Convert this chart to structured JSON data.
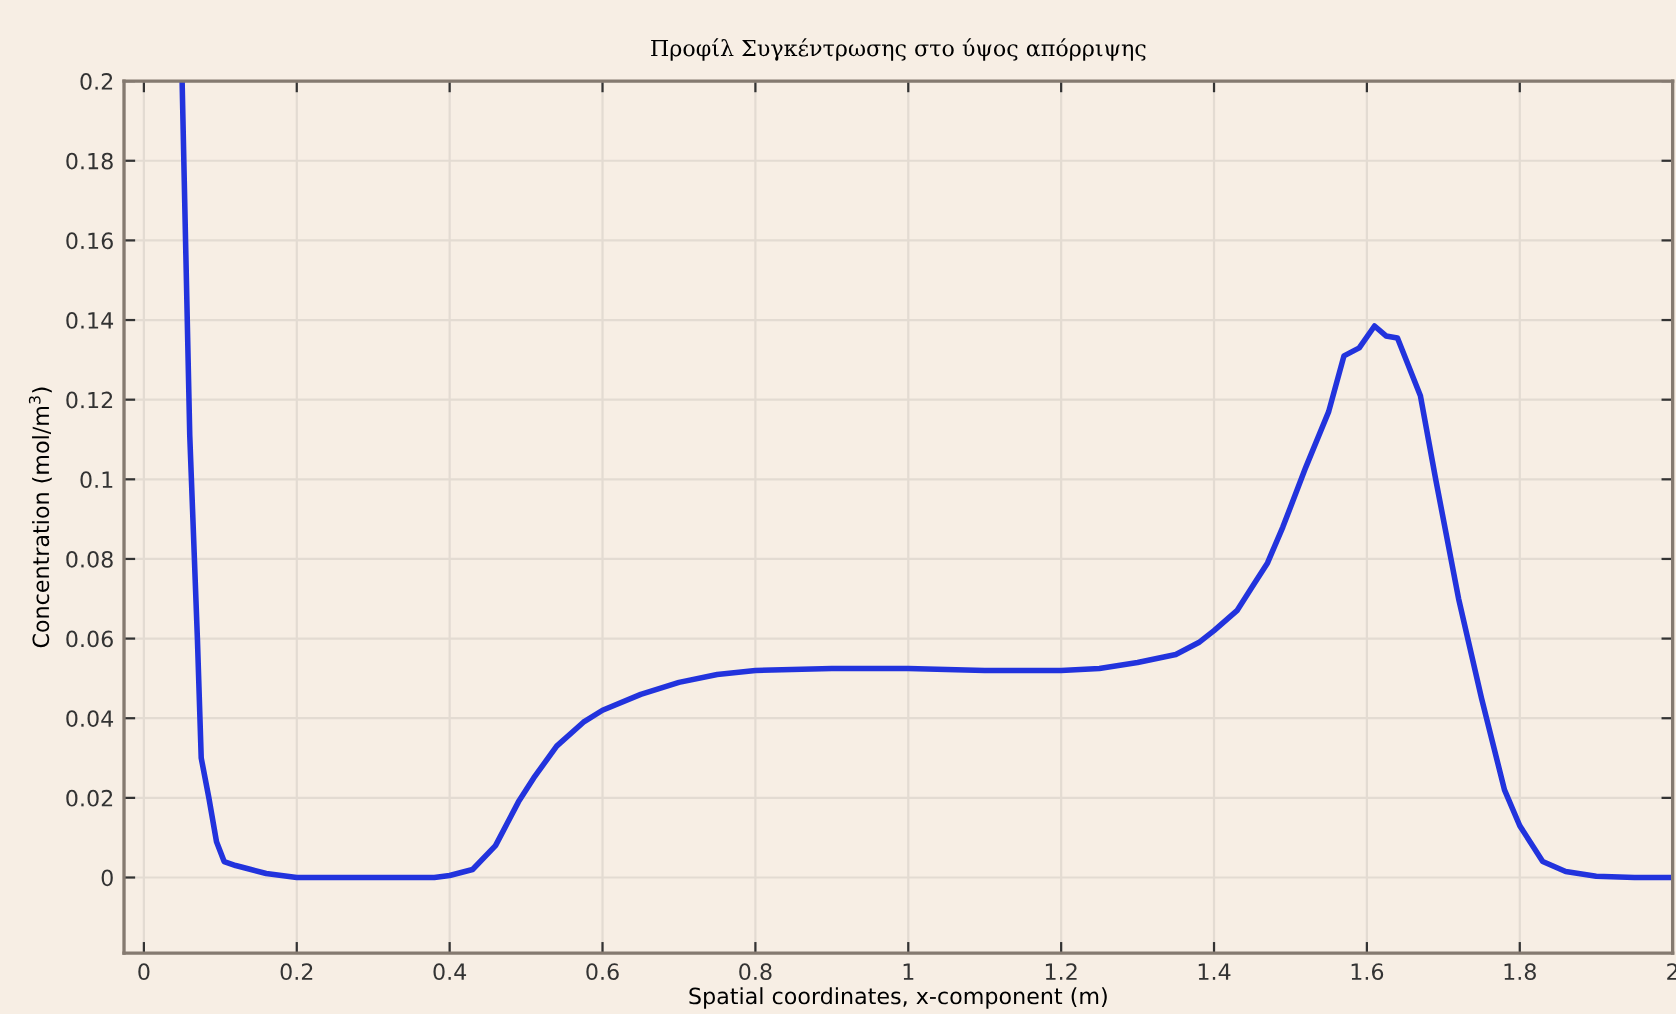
{
  "chart_data": {
    "type": "line",
    "title": "Προφίλ Συγκέντρωσης στο ύψος απόρριψης",
    "xlabel": "Spatial coordinates, x-component (m)",
    "ylabel": "Concentration (mol/m$^{3}$)",
    "x": [
      0.05,
      0.06,
      0.07,
      0.075,
      0.085,
      0.095,
      0.105,
      0.12,
      0.14,
      0.16,
      0.2,
      0.3,
      0.38,
      0.4,
      0.43,
      0.46,
      0.49,
      0.51,
      0.54,
      0.575,
      0.6,
      0.65,
      0.7,
      0.75,
      0.8,
      0.9,
      1.0,
      1.1,
      1.2,
      1.25,
      1.3,
      1.35,
      1.38,
      1.4,
      1.43,
      1.45,
      1.47,
      1.49,
      1.5,
      1.52,
      1.55,
      1.57,
      1.59,
      1.61,
      1.625,
      1.64,
      1.67,
      1.69,
      1.72,
      1.75,
      1.78,
      1.8,
      1.83,
      1.86,
      1.9,
      1.95,
      2.0
    ],
    "series": [
      {
        "color": "#2233dd",
        "values": [
          0.2,
          0.111,
          0.06,
          0.03,
          0.02,
          0.009,
          0.004,
          0.003,
          0.002,
          0.001,
          0.0,
          0.0,
          0.0,
          0.0005,
          0.002,
          0.008,
          0.019,
          0.025,
          0.033,
          0.039,
          0.042,
          0.046,
          0.049,
          0.051,
          0.052,
          0.0525,
          0.0525,
          0.052,
          0.052,
          0.0525,
          0.054,
          0.056,
          0.059,
          0.062,
          0.067,
          0.073,
          0.079,
          0.088,
          0.093,
          0.103,
          0.117,
          0.131,
          0.133,
          0.1385,
          0.136,
          0.1355,
          0.121,
          0.1,
          0.07,
          0.045,
          0.022,
          0.013,
          0.004,
          0.0015,
          0.0003,
          0.0,
          0.0
        ]
      }
    ],
    "xlim": [
      -0.026,
      2.0
    ],
    "ylim": [
      -0.019,
      0.2
    ],
    "xticks": [
      0,
      0.2,
      0.4,
      0.6,
      0.8,
      1,
      1.2,
      1.4,
      1.6,
      1.8,
      2
    ],
    "yticks": [
      0,
      0.02,
      0.04,
      0.06,
      0.08,
      0.1,
      0.12,
      0.14,
      0.16,
      0.18,
      0.2
    ],
    "grid": true,
    "marker": "none",
    "line_style": "solid"
  }
}
